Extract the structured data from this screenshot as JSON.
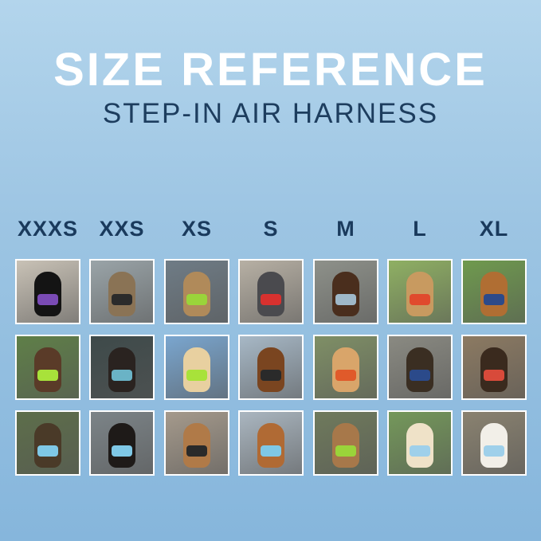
{
  "header": {
    "title": "SIZE REFERENCE",
    "subtitle": "STEP-IN AIR HARNESS"
  },
  "sizes": [
    "XXXS",
    "XXS",
    "XS",
    "S",
    "M",
    "L",
    "XL"
  ],
  "photos": [
    [
      {
        "bg": "#c9c2b6",
        "pet": "#141414",
        "harness": "#7a4bb5"
      },
      {
        "bg": "#9aa4a8",
        "pet": "#8a7355",
        "harness": "#2b2b2b"
      },
      {
        "bg": "#6f7c86",
        "pet": "#b08a5a",
        "harness": "#9ad43a"
      },
      {
        "bg": "#b7b0a4",
        "pet": "#4a4a4e",
        "harness": "#d8312f"
      },
      {
        "bg": "#8e918a",
        "pet": "#4a2e1d",
        "harness": "#9fb8c8"
      },
      {
        "bg": "#8fb063",
        "pet": "#c89a60",
        "harness": "#e04a2d"
      },
      {
        "bg": "#6f9a4e",
        "pet": "#b06e33",
        "harness": "#2c4a8a"
      }
    ],
    [
      {
        "bg": "#5f7f48",
        "pet": "#5a3b28",
        "harness": "#a8e23a"
      },
      {
        "bg": "#3e4a4a",
        "pet": "#2a2320",
        "harness": "#6ab3c6"
      },
      {
        "bg": "#7aa6cf",
        "pet": "#e8d0a0",
        "harness": "#a8e23a"
      },
      {
        "bg": "#a7b8c6",
        "pet": "#7a4520",
        "harness": "#2a2a2a"
      },
      {
        "bg": "#7f8f66",
        "pet": "#d9a56a",
        "harness": "#e05a2a"
      },
      {
        "bg": "#8a8a82",
        "pet": "#3a2e22",
        "harness": "#2b4a8a"
      },
      {
        "bg": "#8c7a62",
        "pet": "#3a2a1e",
        "harness": "#d84a3a"
      }
    ],
    [
      {
        "bg": "#5d6e4a",
        "pet": "#4a3a28",
        "harness": "#7fc8e6"
      },
      {
        "bg": "#7c8488",
        "pet": "#1e1a18",
        "harness": "#7fc8e6"
      },
      {
        "bg": "#a59a8c",
        "pet": "#b07a48",
        "harness": "#2a2a2a"
      },
      {
        "bg": "#aab6c0",
        "pet": "#b06a34",
        "harness": "#7fc8e6"
      },
      {
        "bg": "#6f7a5c",
        "pet": "#a7784a",
        "harness": "#9ad43a"
      },
      {
        "bg": "#74985a",
        "pet": "#efe2c8",
        "harness": "#9fd0ea"
      },
      {
        "bg": "#8a8270",
        "pet": "#f2efe8",
        "harness": "#9fd0ea"
      }
    ]
  ]
}
